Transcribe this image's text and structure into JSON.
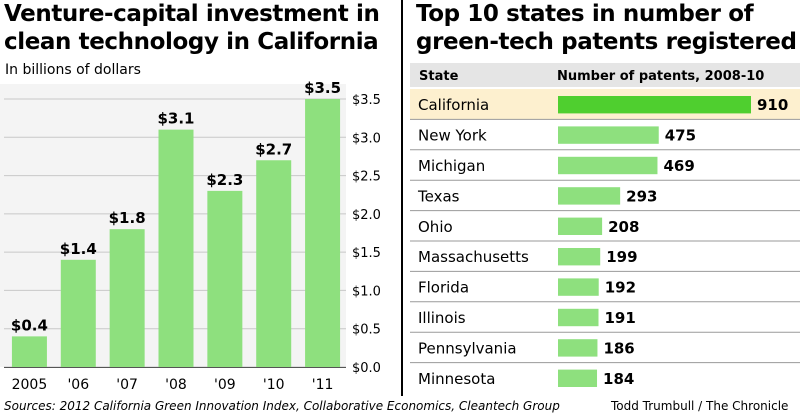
{
  "left_panel": {
    "title_lines": [
      "Venture-capital investment in",
      "clean technology in California"
    ],
    "subtitle": "In billions of dollars"
  },
  "right_panel": {
    "title_lines": [
      "Top 10 states in number of",
      "green-tech patents registered"
    ],
    "col_state": "State",
    "col_patents": "Number of patents, 2008-10"
  },
  "footer": {
    "sources": "Sources: 2012 California Green Innovation Index, Collaborative Economics, Cleantech Group",
    "credit": "Todd Trumbull / The Chronicle"
  },
  "colors": {
    "bar": "#8ee07e",
    "bar_highlight": "#4fcf2f",
    "highlight_row": "#fdf0cf",
    "grid": "#c8c8c8",
    "row_rule": "#9a9a9a"
  },
  "chart_data": [
    {
      "type": "bar",
      "title": "Venture-capital investment in clean technology in California",
      "subtitle": "In billions of dollars",
      "categories": [
        "2005",
        "'06",
        "'07",
        "'08",
        "'09",
        "'10",
        "'11"
      ],
      "values": [
        0.4,
        1.4,
        1.8,
        3.1,
        2.3,
        2.7,
        3.5
      ],
      "value_labels": [
        "$0.4",
        "$1.4",
        "$1.8",
        "$3.1",
        "$2.3",
        "$2.7",
        "$3.5"
      ],
      "yticks": [
        "$0.0",
        "$0.5",
        "$1.0",
        "$1.5",
        "$2.0",
        "$2.5",
        "$3.0",
        "$3.5"
      ],
      "ytick_values": [
        0,
        0.5,
        1.0,
        1.5,
        2.0,
        2.5,
        3.0,
        3.5
      ],
      "ylim": [
        0,
        3.5
      ],
      "grid": true,
      "y_axis_side": "right"
    },
    {
      "type": "bar",
      "orientation": "horizontal",
      "title": "Top 10 states in number of green-tech patents registered",
      "categories": [
        "California",
        "New York",
        "Michigan",
        "Texas",
        "Ohio",
        "Massachusetts",
        "Florida",
        "Illinois",
        "Pennsylvania",
        "Minnesota"
      ],
      "values": [
        910,
        475,
        469,
        293,
        208,
        199,
        192,
        191,
        186,
        184
      ],
      "xlabel": "Number of patents, 2008-10",
      "highlight": "California"
    }
  ]
}
